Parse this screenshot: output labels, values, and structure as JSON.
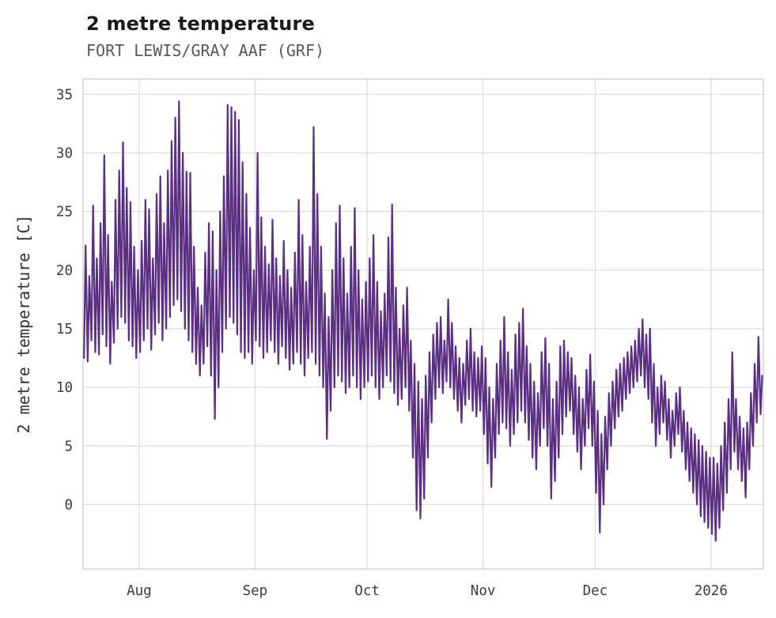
{
  "chart_data": {
    "type": "line",
    "title": "2 metre temperature",
    "subtitle": "FORT LEWIS/GRAY AAF (GRF)",
    "ylabel": "2 metre temperature [C]",
    "xlabel": "",
    "line_color": "#5b2f82",
    "grid": true,
    "legend": "none",
    "ylim": [
      -5.5,
      36.3
    ],
    "y_ticks": [
      0,
      5,
      10,
      15,
      20,
      25,
      30,
      35
    ],
    "x_total_days": 182,
    "x_ticks": [
      {
        "label": "Aug",
        "day": 15
      },
      {
        "label": "Sep",
        "day": 46
      },
      {
        "label": "Oct",
        "day": 76
      },
      {
        "label": "Nov",
        "day": 107
      },
      {
        "label": "Dec",
        "day": 137
      },
      {
        "label": "2026",
        "day": 168
      }
    ],
    "series": [
      {
        "name": "2 metre temperature",
        "units": "C",
        "daily_min": [
          12.5,
          12.2,
          14.0,
          13.0,
          12.8,
          14.5,
          13.5,
          12.0,
          13.8,
          15.0,
          16.0,
          15.5,
          14.0,
          13.5,
          12.5,
          13.0,
          14.0,
          15.0,
          13.2,
          14.5,
          15.5,
          14.0,
          15.0,
          16.0,
          17.0,
          17.5,
          16.5,
          15.0,
          14.0,
          13.0,
          12.0,
          11.0,
          12.0,
          13.5,
          11.0,
          7.3,
          10.0,
          13.0,
          15.0,
          16.0,
          15.5,
          14.5,
          13.0,
          12.5,
          13.0,
          12.0,
          14.0,
          13.5,
          12.5,
          13.0,
          14.0,
          13.0,
          12.0,
          13.5,
          12.5,
          11.5,
          12.0,
          13.0,
          12.0,
          11.0,
          12.5,
          13.0,
          12.0,
          11.0,
          10.0,
          5.6,
          8.0,
          10.0,
          11.0,
          10.5,
          9.5,
          10.0,
          11.0,
          10.0,
          9.0,
          10.0,
          10.5,
          11.0,
          10.0,
          9.0,
          10.0,
          11.0,
          10.5,
          9.5,
          8.5,
          9.0,
          10.0,
          8.0,
          4.0,
          -0.5,
          -1.2,
          0.5,
          4.0,
          7.0,
          9.0,
          10.0,
          9.5,
          10.5,
          10.0,
          9.0,
          8.0,
          7.0,
          8.5,
          9.0,
          8.0,
          7.5,
          8.0,
          6.0,
          3.5,
          1.5,
          4.0,
          6.0,
          7.0,
          6.5,
          5.0,
          6.0,
          7.0,
          8.0,
          7.0,
          5.5,
          4.0,
          3.0,
          5.0,
          6.5,
          5.0,
          0.5,
          2.0,
          4.0,
          6.0,
          7.5,
          8.0,
          6.0,
          4.5,
          3.0,
          5.0,
          6.5,
          5.0,
          1.0,
          -2.4,
          0.0,
          3.0,
          5.0,
          6.5,
          7.5,
          8.0,
          9.0,
          9.5,
          10.0,
          10.5,
          11.0,
          10.0,
          9.0,
          7.0,
          5.0,
          6.0,
          7.0,
          5.5,
          4.0,
          5.0,
          6.0,
          4.5,
          3.0,
          2.0,
          1.0,
          0.0,
          -1.0,
          -1.5,
          -2.0,
          -2.5,
          -3.1,
          -2.0,
          -0.5,
          1.0,
          3.0,
          4.5,
          3.0,
          2.0,
          0.6,
          3.0,
          5.0,
          7.0,
          7.7
        ],
        "daily_max": [
          22.1,
          19.5,
          25.5,
          21.0,
          24.0,
          29.8,
          23.0,
          19.0,
          26.0,
          28.5,
          30.9,
          27.0,
          25.8,
          22.0,
          20.0,
          22.5,
          26.0,
          25.2,
          21.0,
          26.5,
          28.0,
          24.0,
          28.5,
          31.0,
          33.0,
          34.4,
          30.0,
          28.4,
          28.3,
          22.0,
          18.5,
          17.0,
          21.5,
          24.0,
          23.3,
          20.0,
          25.0,
          28.0,
          34.1,
          33.9,
          33.5,
          32.8,
          29.2,
          26.5,
          23.6,
          20.0,
          30.0,
          24.5,
          22.0,
          20.5,
          24.3,
          21.0,
          19.5,
          22.5,
          20.0,
          18.5,
          21.5,
          26.0,
          23.0,
          19.0,
          22.0,
          32.2,
          26.5,
          22.0,
          18.0,
          16.0,
          20.0,
          24.0,
          25.5,
          21.0,
          18.0,
          22.0,
          25.3,
          20.0,
          17.5,
          19.0,
          21.0,
          23.0,
          19.0,
          16.5,
          18.0,
          22.8,
          25.6,
          18.5,
          15.0,
          17.0,
          18.5,
          14.0,
          12.0,
          10.5,
          9.0,
          11.0,
          13.0,
          14.5,
          15.5,
          16.0,
          14.0,
          17.5,
          15.5,
          13.5,
          12.5,
          12.0,
          14.0,
          15.0,
          13.0,
          12.5,
          13.5,
          12.5,
          10.0,
          9.0,
          12.0,
          14.0,
          16.0,
          13.0,
          11.5,
          14.5,
          15.5,
          16.7,
          13.5,
          12.0,
          10.5,
          9.5,
          13.0,
          14.2,
          12.0,
          9.0,
          10.5,
          13.5,
          14.0,
          13.0,
          12.5,
          11.0,
          10.0,
          9.0,
          11.5,
          12.8,
          10.5,
          8.0,
          6.0,
          7.5,
          9.5,
          10.5,
          11.5,
          12.0,
          12.5,
          13.0,
          13.5,
          14.0,
          15.0,
          15.8,
          14.5,
          15.0,
          12.0,
          10.0,
          11.0,
          10.5,
          9.0,
          8.0,
          9.5,
          10.0,
          8.0,
          7.0,
          6.5,
          6.0,
          5.5,
          5.0,
          4.5,
          4.0,
          4.0,
          3.5,
          5.0,
          7.0,
          9.0,
          13.0,
          9.0,
          7.5,
          6.5,
          7.0,
          9.5,
          12.0,
          14.3,
          11.0
        ]
      }
    ]
  }
}
